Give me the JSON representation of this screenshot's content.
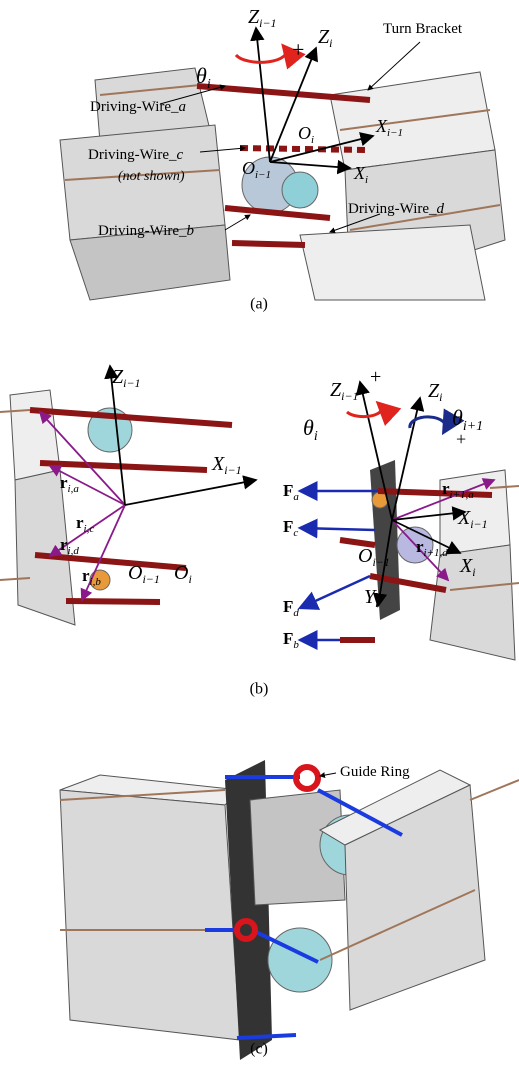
{
  "panel_a": {
    "caption": "(a)",
    "labels": [
      {
        "text": "Z",
        "sub": "i−1"
      },
      {
        "text": "Z",
        "sub": "i"
      },
      {
        "text": "θ",
        "sub": "i"
      },
      {
        "text": "+"
      },
      {
        "text": "Turn Bracket"
      },
      {
        "text": "Driving-Wire_",
        "sub": "a"
      },
      {
        "text": "Driving-Wire_",
        "sub": "c"
      },
      {
        "text": "(not shown)"
      },
      {
        "text": "O",
        "sub": "i"
      },
      {
        "text": "X",
        "sub": "i−1"
      },
      {
        "text": "O",
        "sub": "i−1"
      },
      {
        "text": "X",
        "sub": "i"
      },
      {
        "text": "Driving-Wire_",
        "sub": "d"
      },
      {
        "text": "Driving-Wire_",
        "sub": "b"
      }
    ]
  },
  "panel_b": {
    "caption": "(b)",
    "labels": [
      {
        "text": "Z",
        "sub": "i−1"
      },
      {
        "text": "X",
        "sub": "i−1"
      },
      {
        "text": "r",
        "sub": "i,a"
      },
      {
        "text": "r",
        "sub": "i,c"
      },
      {
        "text": "r",
        "sub": "i,d"
      },
      {
        "text": "r",
        "sub": "i,b"
      },
      {
        "text": "O",
        "sub": "i−1"
      },
      {
        "text": "O",
        "sub": "i"
      },
      {
        "text": "Z",
        "sub": "i−1"
      },
      {
        "text": "+"
      },
      {
        "text": "Z",
        "sub": "i"
      },
      {
        "text": "θ",
        "sub": "i"
      },
      {
        "text": "θ",
        "sub": "i+1"
      },
      {
        "text": "+"
      },
      {
        "text": "F",
        "sub": "a"
      },
      {
        "text": "F",
        "sub": "c"
      },
      {
        "text": "F",
        "sub": "d"
      },
      {
        "text": "F",
        "sub": "b"
      },
      {
        "text": "r",
        "sub": "i+1,a"
      },
      {
        "text": "X",
        "sub": "i−1"
      },
      {
        "text": "O",
        "sub": "i−1"
      },
      {
        "text": "X",
        "sub": "i"
      },
      {
        "text": "Y",
        "sub": "i"
      },
      {
        "text": "r",
        "sub": "i+1,d"
      }
    ]
  },
  "panel_c": {
    "caption": "(c)",
    "labels": [
      {
        "text": "Guide Ring"
      }
    ]
  }
}
